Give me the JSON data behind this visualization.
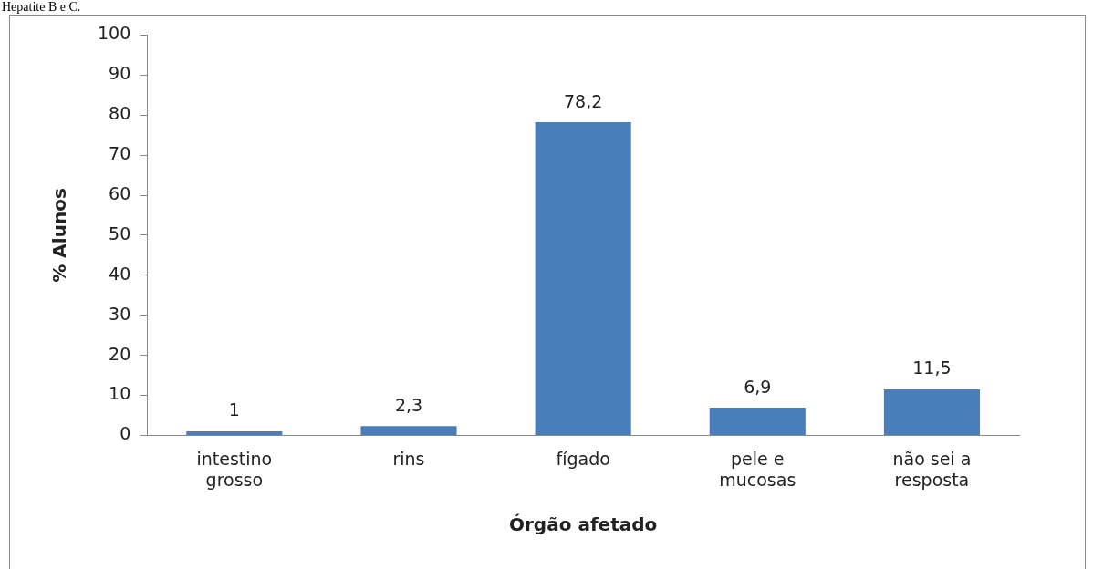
{
  "chart_data": {
    "type": "bar",
    "xlabel": "Órgão afetado",
    "ylabel": "% Alunos",
    "categories": [
      "intestino grosso",
      "rins",
      "fígado",
      "pele e mucosas",
      "não sei a resposta"
    ],
    "values": [
      1,
      2.3,
      78.2,
      6.9,
      11.5
    ],
    "value_labels": [
      "1",
      "2,3",
      "78,2",
      "6,9",
      "11,5"
    ],
    "color": "#4a7ebb",
    "ylim": [
      0,
      100
    ],
    "yticks": [
      0,
      10,
      20,
      30,
      40,
      50,
      60,
      70,
      80,
      90,
      100
    ],
    "grid": false,
    "legend": false,
    "annotations": [
      "Hepatite B e C."
    ]
  }
}
